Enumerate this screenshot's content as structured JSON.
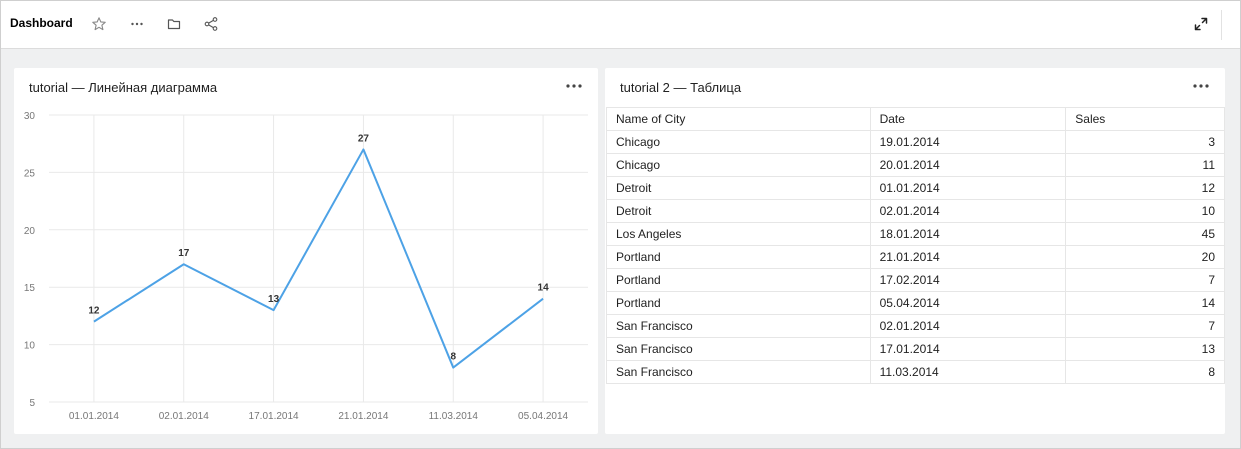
{
  "header": {
    "title": "Dashboard",
    "icons": [
      "star-icon",
      "more-icon",
      "folder-icon",
      "share-icon",
      "fullscreen-icon"
    ]
  },
  "chart_panel": {
    "title": "tutorial — Линейная диаграмма",
    "menu": "···"
  },
  "table_panel": {
    "title": "tutorial 2 — Таблица",
    "menu": "···",
    "columns": [
      "Name of City",
      "Date",
      "Sales"
    ],
    "rows": [
      [
        "Chicago",
        "19.01.2014",
        "3"
      ],
      [
        "Chicago",
        "20.01.2014",
        "11"
      ],
      [
        "Detroit",
        "01.01.2014",
        "12"
      ],
      [
        "Detroit",
        "02.01.2014",
        "10"
      ],
      [
        "Los Angeles",
        "18.01.2014",
        "45"
      ],
      [
        "Portland",
        "21.01.2014",
        "20"
      ],
      [
        "Portland",
        "17.02.2014",
        "7"
      ],
      [
        "Portland",
        "05.04.2014",
        "14"
      ],
      [
        "San Francisco",
        "02.01.2014",
        "7"
      ],
      [
        "San Francisco",
        "17.01.2014",
        "13"
      ],
      [
        "San Francisco",
        "11.03.2014",
        "8"
      ]
    ]
  },
  "chart_data": {
    "type": "line",
    "x": [
      "01.01.2014",
      "02.01.2014",
      "17.01.2014",
      "21.01.2014",
      "11.03.2014",
      "05.04.2014"
    ],
    "values": [
      12,
      17,
      13,
      27,
      8,
      14
    ],
    "data_labels": [
      "12",
      "17",
      "13",
      "27",
      "8",
      "14"
    ],
    "y_ticks": [
      "5",
      "10",
      "15",
      "20",
      "25",
      "30"
    ],
    "ylim": [
      5,
      30
    ],
    "grid": true,
    "line_color": "#4da2e6"
  }
}
